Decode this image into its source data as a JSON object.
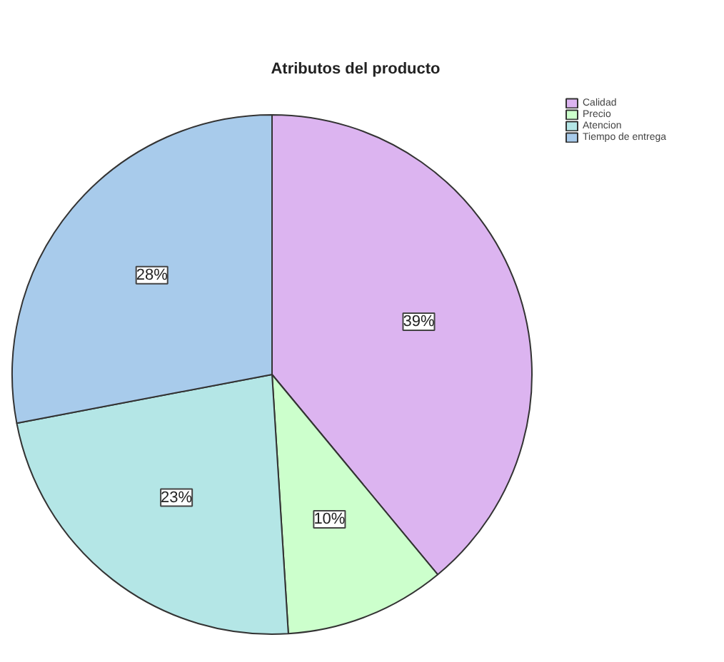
{
  "chart_data": {
    "type": "pie",
    "title": "Atributos del producto",
    "categories": [
      "Calidad",
      "Precio",
      "Atencion",
      "Tiempo de entrega"
    ],
    "values": [
      39,
      10,
      23,
      28
    ],
    "colors": [
      "#dcb4f0",
      "#ccffcc",
      "#b4e6e6",
      "#a8cbeb"
    ],
    "value_labels": [
      "39%",
      "10%",
      "23%",
      "28%"
    ],
    "legend": "top right"
  }
}
